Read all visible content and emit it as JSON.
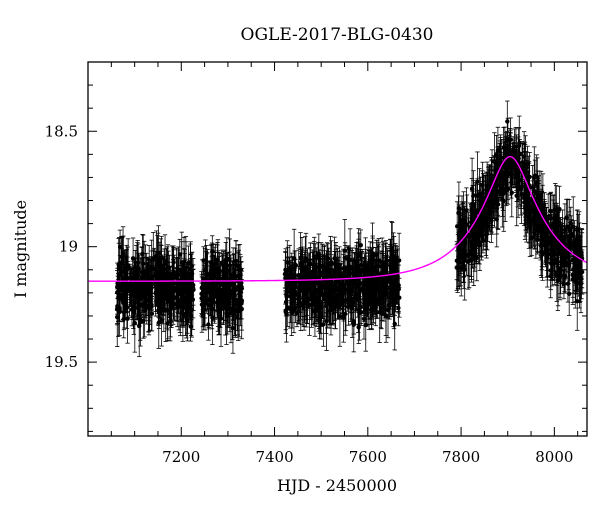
{
  "chart_data": {
    "type": "scatter",
    "title": "OGLE-2017-BLG-0430",
    "xlabel": "HJD - 2450000",
    "ylabel": "I magnitude",
    "xlim": [
      7000,
      8070
    ],
    "ylim": [
      19.82,
      18.2
    ],
    "y_inverted": true,
    "grid": false,
    "x_ticks": [
      7200,
      7400,
      7600,
      7800,
      8000
    ],
    "x_tick_labels": [
      "7200",
      "7400",
      "7600",
      "7800",
      "8000"
    ],
    "y_ticks": [
      18.5,
      19,
      19.5
    ],
    "y_tick_labels": [
      "18.5",
      "19",
      "19.5"
    ],
    "series": [
      {
        "kind": "observations",
        "marker": "filled-circle",
        "error_bars": true,
        "color": "#000000",
        "season_ranges": [
          [
            7062,
            7228
          ],
          [
            7242,
            7330
          ],
          [
            7422,
            7668
          ],
          [
            7790,
            8060
          ]
        ],
        "baseline_mag": 19.13,
        "scatter_mag": 0.12,
        "typical_error": 0.09
      },
      {
        "kind": "model",
        "color": "#ff00ff",
        "model": "single-lens",
        "baseline_mag": 19.15,
        "peak_time": 7905,
        "peak_mag": 18.61,
        "einstein_time_days": 135,
        "x_range": [
          7000,
          8070
        ]
      }
    ]
  }
}
